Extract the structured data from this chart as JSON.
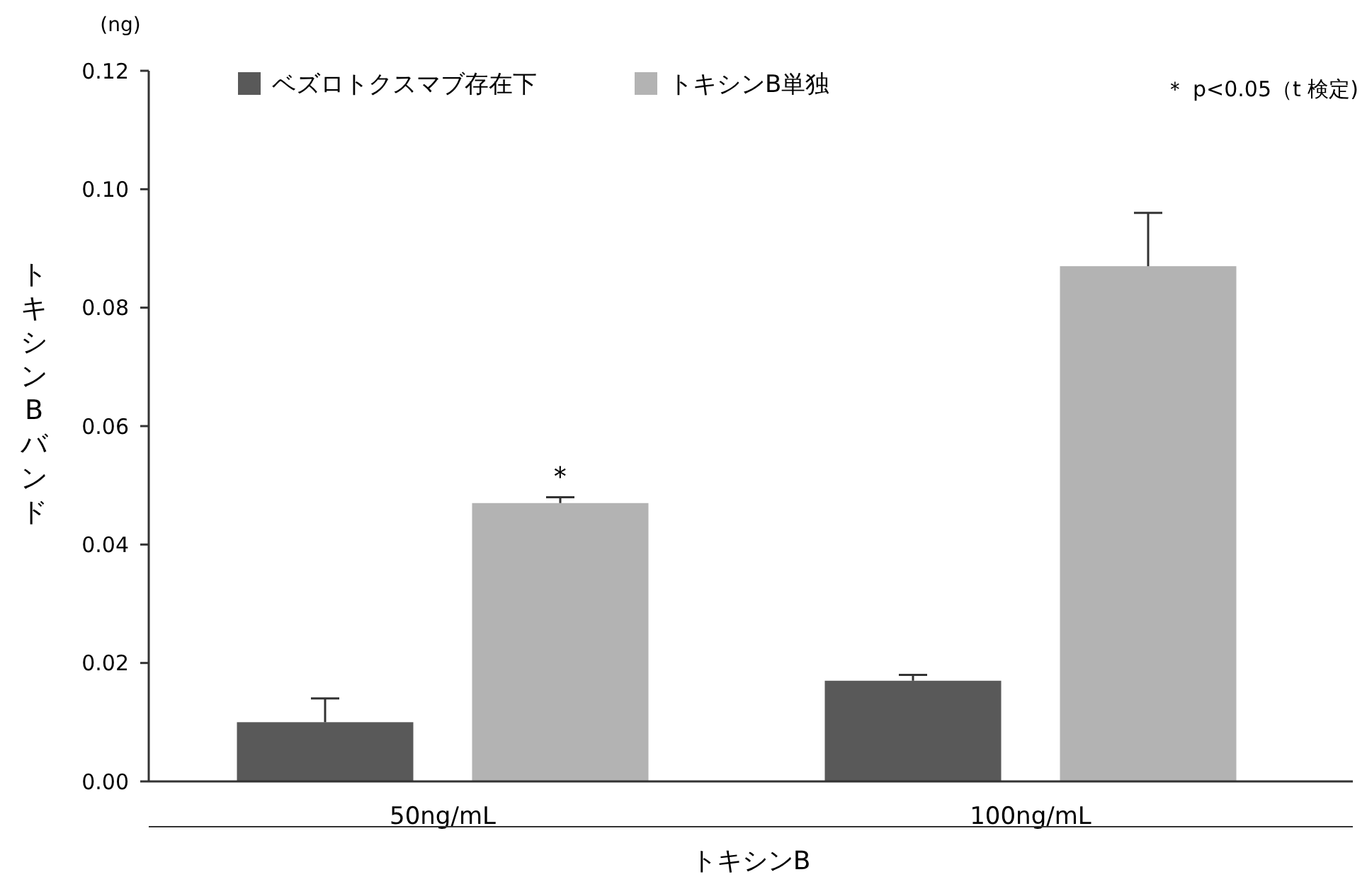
{
  "chart_data": {
    "type": "bar",
    "ylabel": "トキシンBバンド",
    "xlabel": "トキシンB",
    "categories": [
      "50ng/mL",
      "100ng/mL"
    ],
    "series": [
      {
        "name": "ベズロトクスマブ存在下",
        "color": "#595959",
        "values": [
          0.01,
          0.017
        ],
        "errors": [
          [
            0.01,
            0.014
          ],
          [
            0.017,
            0.018
          ]
        ]
      },
      {
        "name": "トキシンB単独",
        "color": "#b3b3b3",
        "values": [
          0.047,
          0.087
        ],
        "errors": [
          [
            0.047,
            0.048
          ],
          [
            0.087,
            0.096
          ]
        ]
      }
    ],
    "ylim": [
      0,
      0.12
    ],
    "yticks": [
      {
        "value": 0,
        "label": "0.00"
      },
      {
        "value": 0.02,
        "label": "0.02"
      },
      {
        "value": 0.04,
        "label": "0.04"
      },
      {
        "value": 0.06,
        "label": "0.06"
      },
      {
        "value": 0.08,
        "label": "0.08"
      },
      {
        "value": 0.1,
        "label": "0.10"
      },
      {
        "value": 0.12,
        "label": "0.12"
      }
    ],
    "legend": "top left",
    "grid": false,
    "annotations": [
      "(ng)",
      "＊",
      "＊ p<0.05（t 検定)"
    ]
  }
}
